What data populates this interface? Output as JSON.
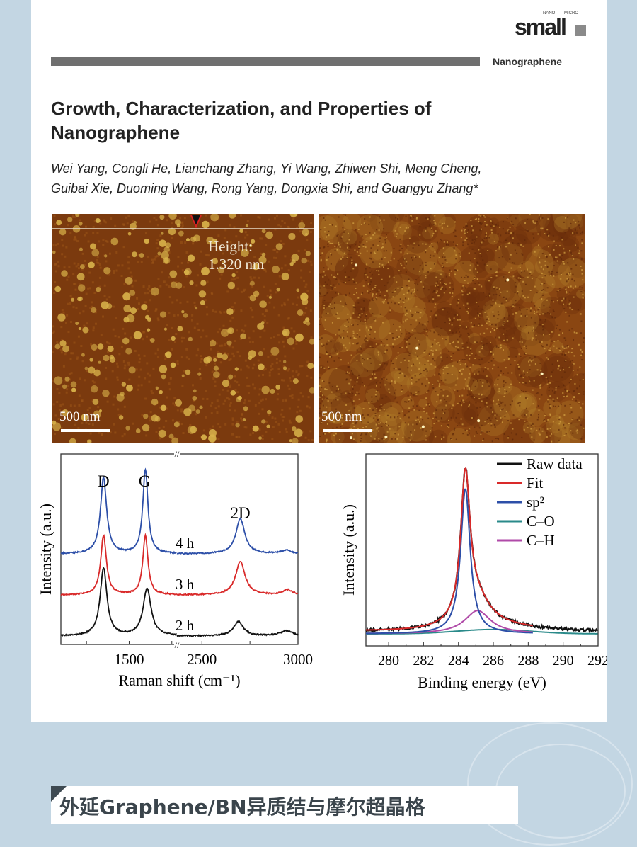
{
  "header": {
    "logo_text": "small",
    "logo_small_left": "NANO",
    "logo_small_right": "MICRO",
    "section": "Nanographene"
  },
  "article": {
    "title": "Growth, Characterization, and Properties of Nanographene",
    "authors_line1": "Wei Yang, Congli He, Lianchang Zhang, Yi Wang, Zhiwen Shi, Meng Cheng,",
    "authors_line2": "Guibai Xie, Duoming Wang, Rong Yang, Dongxia Shi, and Guangyu Zhang*"
  },
  "afm_images": [
    {
      "scale_label": "500 nm",
      "annotation_line1": "Height:",
      "annotation_line2": "1.320 nm"
    },
    {
      "scale_label": "500 nm"
    }
  ],
  "colors": {
    "afm_dark": "#7b3a0e",
    "afm_light": "#d8b24a",
    "raman_4h": "#2d4fa8",
    "raman_3h": "#d92a2a",
    "raman_2h": "#111111"
  },
  "chart_data": [
    {
      "type": "line",
      "xlabel": "Raman shift (cm⁻¹)",
      "ylabel": "Intensity (a.u.)",
      "axis_break": true,
      "x_segments": [
        [
          1100,
          1780
        ],
        [
          2370,
          3000
        ]
      ],
      "xticks": [
        1500,
        2500,
        3000
      ],
      "xtick_labels": [
        "1500",
        "2500",
        "3000"
      ],
      "peak_labels": [
        {
          "text": "D",
          "x": 1350
        },
        {
          "text": "G",
          "x": 1590
        },
        {
          "text": "2D",
          "x": 2700
        }
      ],
      "series": [
        {
          "name": "4 h",
          "color": "#2d4fa8",
          "offset": 2.0,
          "peaks": [
            [
              1350,
              1.85,
              22
            ],
            [
              1595,
              2.05,
              18
            ],
            [
              2700,
              0.85,
              28
            ],
            [
              2940,
              0.08,
              30
            ]
          ]
        },
        {
          "name": "3 h",
          "color": "#d92a2a",
          "offset": 1.0,
          "peaks": [
            [
              1350,
              1.45,
              20
            ],
            [
              1595,
              1.45,
              18
            ],
            [
              2700,
              0.8,
              30
            ],
            [
              2945,
              0.12,
              30
            ]
          ]
        },
        {
          "name": "2 h",
          "color": "#111111",
          "offset": 0.0,
          "peaks": [
            [
              1350,
              1.65,
              24
            ],
            [
              1605,
              1.15,
              28
            ],
            [
              2690,
              0.35,
              30
            ],
            [
              2940,
              0.12,
              40
            ]
          ]
        }
      ]
    },
    {
      "type": "line",
      "xlabel": "Binding energy (eV)",
      "ylabel": "Intensity (a.u.)",
      "xlim": [
        278.7,
        292
      ],
      "xticks": [
        280,
        282,
        284,
        286,
        288,
        290,
        292
      ],
      "legend": "top-right",
      "series": [
        {
          "name": "Raw data",
          "color": "#111111"
        },
        {
          "name": "Fit",
          "color": "#d92a2a"
        },
        {
          "name": "sp²",
          "color": "#2d4fa8"
        },
        {
          "name": "C–O",
          "color": "#2a8a8a"
        },
        {
          "name": "C–H",
          "color": "#b04aa8"
        }
      ],
      "components": {
        "sp2": {
          "center": 284.4,
          "height": 1.0,
          "width": 0.55
        },
        "C-H": {
          "center": 285.1,
          "height": 0.16,
          "width": 0.9
        },
        "C-O": {
          "center": 286.0,
          "height": 0.03,
          "width": 3.0
        }
      }
    }
  ],
  "banner": {
    "text": "外延Graphene/BN异质结与摩尔超晶格"
  }
}
